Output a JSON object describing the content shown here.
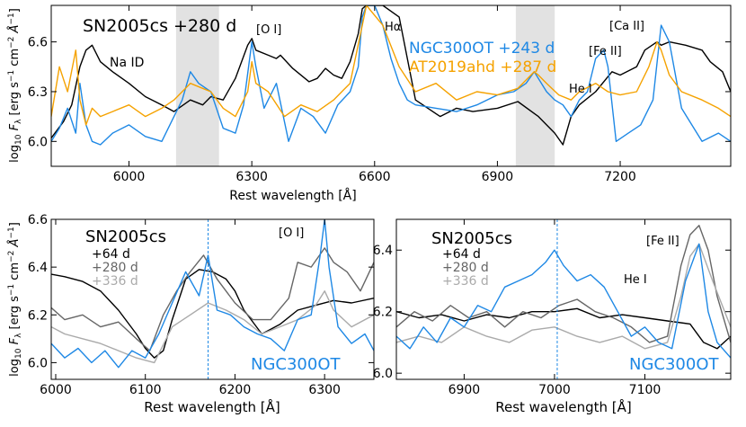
{
  "colors": {
    "black": "#000000",
    "blue": "#1e88e5",
    "orange": "#f5a200",
    "gray280": "#666666",
    "gray336": "#aaaaaa",
    "shade": "#d3d3d3"
  },
  "chart_data": [
    {
      "type": "line",
      "panel": "top",
      "title": "SN2005cs +280 d",
      "xlabel": "Rest wavelength [Å]",
      "ylabel": "log10 F_λ [erg s^-1 cm^-2 Å^-1]",
      "xlim": [
        5810,
        7470
      ],
      "ylim": [
        5.85,
        6.82
      ],
      "xticks": [
        6000,
        6300,
        6600,
        6900,
        7200
      ],
      "yticks": [
        6.0,
        6.3,
        6.6
      ],
      "xtick_labels": [
        "6000",
        "6300",
        "6600",
        "6900",
        "7200"
      ],
      "ytick_labels": [
        "6.0",
        "6.3",
        "6.6"
      ],
      "shaded_regions": [
        [
          6115,
          6220
        ],
        [
          6945,
          7040
        ]
      ],
      "legend": [
        "NGC300OT +243 d",
        "AT2019ahd +287 d"
      ],
      "annotations": [
        "Na ID",
        "[O I]",
        "Hα",
        "[Fe II]",
        "He I",
        "[Ca II]"
      ],
      "series": [
        {
          "name": "SN2005cs +280 d",
          "color": "black",
          "x": [
            5810,
            5840,
            5860,
            5880,
            5895,
            5910,
            5930,
            5960,
            6000,
            6040,
            6080,
            6110,
            6150,
            6180,
            6200,
            6230,
            6260,
            6290,
            6300,
            6310,
            6340,
            6360,
            6370,
            6400,
            6440,
            6460,
            6480,
            6500,
            6520,
            6540,
            6560,
            6570,
            6580,
            6620,
            6660,
            6700,
            6760,
            6800,
            6840,
            6900,
            6950,
            7000,
            7040,
            7060,
            7080,
            7100,
            7140,
            7180,
            7200,
            7240,
            7260,
            7290,
            7300,
            7320,
            7360,
            7400,
            7420,
            7450,
            7470
          ],
          "y": [
            6.02,
            6.12,
            6.22,
            6.45,
            6.55,
            6.58,
            6.48,
            6.42,
            6.35,
            6.27,
            6.22,
            6.18,
            6.25,
            6.22,
            6.27,
            6.25,
            6.38,
            6.58,
            6.62,
            6.55,
            6.52,
            6.5,
            6.52,
            6.44,
            6.36,
            6.38,
            6.44,
            6.4,
            6.38,
            6.48,
            6.65,
            6.8,
            6.82,
            6.82,
            6.75,
            6.25,
            6.15,
            6.2,
            6.18,
            6.2,
            6.24,
            6.15,
            6.05,
            5.98,
            6.15,
            6.22,
            6.3,
            6.42,
            6.4,
            6.45,
            6.55,
            6.6,
            6.58,
            6.6,
            6.58,
            6.55,
            6.48,
            6.42,
            6.3
          ]
        },
        {
          "name": "NGC300OT +243 d",
          "color": "blue",
          "x": [
            5810,
            5830,
            5850,
            5870,
            5880,
            5895,
            5910,
            5930,
            5960,
            6000,
            6040,
            6080,
            6110,
            6130,
            6150,
            6170,
            6200,
            6230,
            6260,
            6280,
            6300,
            6310,
            6330,
            6360,
            6390,
            6420,
            6450,
            6480,
            6510,
            6540,
            6560,
            6570,
            6580,
            6600,
            6620,
            6640,
            6660,
            6680,
            6700,
            6750,
            6800,
            6850,
            6900,
            6940,
            6970,
            6990,
            7000,
            7020,
            7040,
            7060,
            7080,
            7100,
            7120,
            7140,
            7160,
            7170,
            7190,
            7220,
            7250,
            7280,
            7300,
            7320,
            7350,
            7400,
            7440,
            7470
          ],
          "y": [
            6.0,
            6.08,
            6.2,
            6.05,
            6.35,
            6.1,
            6.0,
            5.98,
            6.05,
            6.1,
            6.03,
            6.0,
            6.15,
            6.25,
            6.42,
            6.35,
            6.3,
            6.08,
            6.05,
            6.22,
            6.6,
            6.45,
            6.2,
            6.35,
            6.0,
            6.2,
            6.15,
            6.05,
            6.22,
            6.3,
            6.45,
            6.75,
            6.82,
            6.82,
            6.7,
            6.5,
            6.35,
            6.25,
            6.22,
            6.2,
            6.18,
            6.22,
            6.28,
            6.3,
            6.35,
            6.42,
            6.38,
            6.3,
            6.25,
            6.22,
            6.15,
            6.25,
            6.3,
            6.5,
            6.55,
            6.45,
            6.0,
            6.05,
            6.1,
            6.25,
            6.7,
            6.6,
            6.2,
            6.0,
            6.05,
            6.0
          ]
        },
        {
          "name": "AT2019ahd +287 d",
          "color": "orange",
          "x": [
            5810,
            5830,
            5850,
            5870,
            5880,
            5895,
            5910,
            5930,
            5960,
            6000,
            6040,
            6080,
            6110,
            6150,
            6180,
            6200,
            6230,
            6260,
            6290,
            6300,
            6310,
            6340,
            6380,
            6420,
            6460,
            6500,
            6540,
            6570,
            6580,
            6620,
            6660,
            6700,
            6750,
            6800,
            6850,
            6900,
            6950,
            6990,
            7000,
            7020,
            7050,
            7080,
            7100,
            7140,
            7170,
            7200,
            7240,
            7270,
            7290,
            7300,
            7320,
            7350,
            7400,
            7440,
            7470
          ],
          "y": [
            6.15,
            6.45,
            6.3,
            6.55,
            6.25,
            6.1,
            6.2,
            6.15,
            6.18,
            6.22,
            6.15,
            6.2,
            6.25,
            6.35,
            6.32,
            6.3,
            6.2,
            6.15,
            6.3,
            6.48,
            6.35,
            6.3,
            6.15,
            6.22,
            6.18,
            6.25,
            6.35,
            6.7,
            6.82,
            6.7,
            6.45,
            6.3,
            6.35,
            6.25,
            6.3,
            6.28,
            6.32,
            6.42,
            6.4,
            6.35,
            6.28,
            6.25,
            6.3,
            6.35,
            6.3,
            6.28,
            6.3,
            6.45,
            6.6,
            6.55,
            6.4,
            6.3,
            6.25,
            6.2,
            6.15
          ]
        }
      ]
    },
    {
      "type": "line",
      "panel": "bottom-left",
      "title": "SN2005cs",
      "xlabel": "Rest wavelength [Å]",
      "ylabel": "log10 F_λ [erg s^-1 cm^-2 Å^-1]",
      "xlim": [
        5995,
        6355
      ],
      "ylim": [
        5.93,
        6.6
      ],
      "xticks": [
        6000,
        6100,
        6200,
        6300
      ],
      "yticks": [
        6.0,
        6.2,
        6.4,
        6.6
      ],
      "xtick_labels": [
        "6000",
        "6100",
        "6200",
        "6300"
      ],
      "ytick_labels": [
        "6.0",
        "6.2",
        "6.4",
        "6.6"
      ],
      "vline": 6170,
      "legend": [
        "+64 d",
        "+280 d",
        "+336 d"
      ],
      "annotations": [
        "[O I]",
        "NGC300OT"
      ],
      "series": [
        {
          "name": "+64 d",
          "color": "black",
          "x": [
            5995,
            6010,
            6030,
            6050,
            6070,
            6090,
            6100,
            6110,
            6120,
            6130,
            6145,
            6160,
            6175,
            6190,
            6200,
            6210,
            6230,
            6250,
            6270,
            6290,
            6310,
            6330,
            6355
          ],
          "y": [
            6.37,
            6.36,
            6.34,
            6.3,
            6.22,
            6.12,
            6.06,
            6.02,
            6.05,
            6.18,
            6.35,
            6.39,
            6.38,
            6.35,
            6.3,
            6.22,
            6.12,
            6.16,
            6.22,
            6.24,
            6.26,
            6.25,
            6.27
          ]
        },
        {
          "name": "+280 d",
          "color": "gray280",
          "x": [
            5995,
            6010,
            6030,
            6050,
            6070,
            6090,
            6105,
            6120,
            6135,
            6150,
            6165,
            6180,
            6200,
            6220,
            6240,
            6260,
            6270,
            6285,
            6300,
            6310,
            6325,
            6340,
            6355
          ],
          "y": [
            6.23,
            6.18,
            6.2,
            6.15,
            6.17,
            6.1,
            6.05,
            6.2,
            6.3,
            6.38,
            6.45,
            6.35,
            6.25,
            6.18,
            6.18,
            6.27,
            6.42,
            6.4,
            6.48,
            6.42,
            6.38,
            6.3,
            6.42
          ]
        },
        {
          "name": "+336 d",
          "color": "gray336",
          "x": [
            5995,
            6010,
            6030,
            6050,
            6070,
            6090,
            6110,
            6130,
            6150,
            6170,
            6190,
            6210,
            6230,
            6250,
            6270,
            6290,
            6300,
            6310,
            6330,
            6355
          ],
          "y": [
            6.15,
            6.12,
            6.1,
            6.08,
            6.05,
            6.02,
            6.0,
            6.15,
            6.2,
            6.25,
            6.22,
            6.18,
            6.12,
            6.15,
            6.18,
            6.24,
            6.3,
            6.22,
            6.15,
            6.2
          ]
        },
        {
          "name": "NGC300OT",
          "color": "blue",
          "x": [
            5995,
            6010,
            6025,
            6040,
            6055,
            6070,
            6085,
            6100,
            6115,
            6130,
            6145,
            6160,
            6170,
            6180,
            6195,
            6210,
            6225,
            6240,
            6255,
            6270,
            6285,
            6295,
            6300,
            6305,
            6315,
            6330,
            6345,
            6355
          ],
          "y": [
            6.08,
            6.02,
            6.06,
            6.0,
            6.05,
            5.98,
            6.05,
            6.02,
            6.12,
            6.25,
            6.38,
            6.28,
            6.45,
            6.22,
            6.2,
            6.15,
            6.12,
            6.1,
            6.05,
            6.18,
            6.2,
            6.45,
            6.6,
            6.4,
            6.15,
            6.08,
            6.12,
            6.05
          ]
        }
      ]
    },
    {
      "type": "line",
      "panel": "bottom-right",
      "title": "SN2005cs",
      "xlabel": "Rest wavelength [Å]",
      "ylabel": "",
      "xlim": [
        6825,
        7195
      ],
      "ylim": [
        5.98,
        6.5
      ],
      "xticks": [
        6900,
        7000,
        7100
      ],
      "yticks": [
        6.0,
        6.2,
        6.4
      ],
      "xtick_labels": [
        "6900",
        "7000",
        "7100"
      ],
      "ytick_labels": [
        "6.0",
        "6.2",
        "6.4"
      ],
      "vline": 7003,
      "legend": [
        "+64 d",
        "+280 d",
        "+336 d"
      ],
      "annotations": [
        "[Fe II]",
        "He I",
        "NGC300OT"
      ],
      "series": [
        {
          "name": "+64 d",
          "color": "black",
          "x": [
            6825,
            6850,
            6875,
            6900,
            6925,
            6950,
            6975,
            7000,
            7025,
            7050,
            7075,
            7100,
            7125,
            7150,
            7165,
            7180,
            7195
          ],
          "y": [
            6.2,
            6.18,
            6.19,
            6.17,
            6.19,
            6.18,
            6.2,
            6.2,
            6.21,
            6.18,
            6.19,
            6.18,
            6.17,
            6.16,
            6.1,
            6.08,
            6.12
          ]
        },
        {
          "name": "+280 d",
          "color": "gray280",
          "x": [
            6825,
            6845,
            6865,
            6885,
            6905,
            6925,
            6945,
            6965,
            6985,
            7005,
            7025,
            7045,
            7065,
            7085,
            7105,
            7125,
            7140,
            7150,
            7160,
            7170,
            7180,
            7195
          ],
          "y": [
            6.15,
            6.2,
            6.17,
            6.22,
            6.18,
            6.2,
            6.15,
            6.2,
            6.18,
            6.22,
            6.24,
            6.2,
            6.18,
            6.15,
            6.1,
            6.12,
            6.35,
            6.45,
            6.48,
            6.4,
            6.25,
            6.1
          ]
        },
        {
          "name": "+336 d",
          "color": "gray336",
          "x": [
            6825,
            6850,
            6875,
            6900,
            6925,
            6950,
            6975,
            7000,
            7025,
            7050,
            7075,
            7100,
            7125,
            7140,
            7150,
            7160,
            7175,
            7195
          ],
          "y": [
            6.1,
            6.12,
            6.1,
            6.15,
            6.12,
            6.1,
            6.14,
            6.15,
            6.12,
            6.1,
            6.12,
            6.08,
            6.1,
            6.25,
            6.38,
            6.42,
            6.3,
            6.15
          ]
        },
        {
          "name": "NGC300OT",
          "color": "blue",
          "x": [
            6825,
            6840,
            6855,
            6870,
            6885,
            6900,
            6915,
            6930,
            6945,
            6960,
            6975,
            6990,
            7000,
            7010,
            7025,
            7040,
            7055,
            7070,
            7085,
            7100,
            7115,
            7130,
            7145,
            7160,
            7170,
            7180,
            7195
          ],
          "y": [
            6.12,
            6.08,
            6.15,
            6.1,
            6.18,
            6.15,
            6.22,
            6.2,
            6.28,
            6.3,
            6.32,
            6.36,
            6.4,
            6.35,
            6.3,
            6.32,
            6.28,
            6.2,
            6.12,
            6.15,
            6.1,
            6.08,
            6.3,
            6.42,
            6.2,
            6.1,
            6.05
          ]
        }
      ]
    }
  ],
  "labels": {
    "top_title": "SN2005cs +280 d",
    "na": "Na ID",
    "oi": "[O I]",
    "ha": "Hα",
    "feii": "[Fe II]",
    "hei": "He I",
    "caii": "[Ca II]",
    "ngc": "NGC300OT +243 d",
    "at": "AT2019ahd +287 d",
    "xlabel": "Rest wavelength [Å]",
    "bl_title": "SN2005cs",
    "d64": "+64 d",
    "d280": "+280 d",
    "d336": "+336 d",
    "ngc_short": "NGC300OT",
    "br_title": "SN2005cs"
  }
}
